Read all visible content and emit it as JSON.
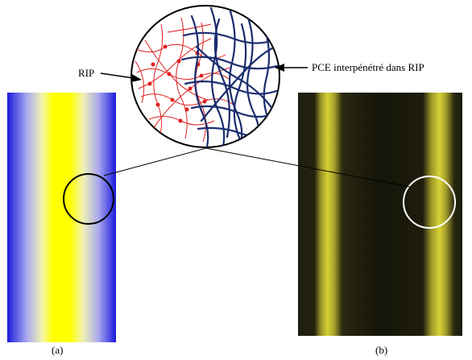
{
  "figure": {
    "labels": {
      "rip": "RIP",
      "pce": "PCE interpénétré dans RIP"
    },
    "captions": {
      "a": "(a)",
      "b": "(b)"
    },
    "colors": {
      "rip_network": "#e02020",
      "pce_network": "#1a2d6e",
      "gradient_edge_blue": "#1a1adc",
      "gradient_center_yellow": "#ffff00",
      "micrograph_background": "#141409",
      "micrograph_band": "#c8c230",
      "outline": "#000000",
      "zoom_circle_on_micrograph": "#ffffff"
    }
  }
}
